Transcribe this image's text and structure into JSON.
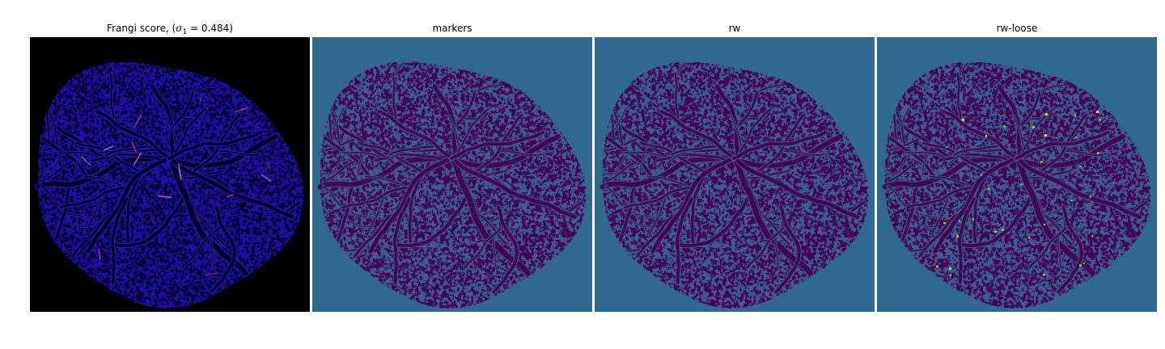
{
  "figure": {
    "panels": [
      {
        "title_prefix": "Frangi score, (",
        "title_symbol": "σ",
        "title_subscript": "1",
        "title_suffix": " = 0.484)",
        "colormap": "gnuplot2",
        "background": "#000000",
        "foreground": "#1a0f9e",
        "vessel_color": "#03022e",
        "highlight_colors": [
          "#b0305a",
          "#e060a0",
          "#ffb0c0"
        ],
        "icon": "vessel-score-image"
      },
      {
        "title": "markers",
        "colormap": "viridis",
        "background": "#31688e",
        "foreground": "#440154",
        "icon": "markers-label-image"
      },
      {
        "title": "rw",
        "colormap": "viridis",
        "background": "#31688e",
        "foreground": "#440154",
        "icon": "rw-segmentation-image"
      },
      {
        "title": "rw-loose",
        "colormap": "viridis",
        "background": "#31688e",
        "foreground": "#440154",
        "highlight_colors": [
          "#6ece58",
          "#b5de2b",
          "#fde725"
        ],
        "icon": "rw-loose-segmentation-image"
      }
    ]
  }
}
